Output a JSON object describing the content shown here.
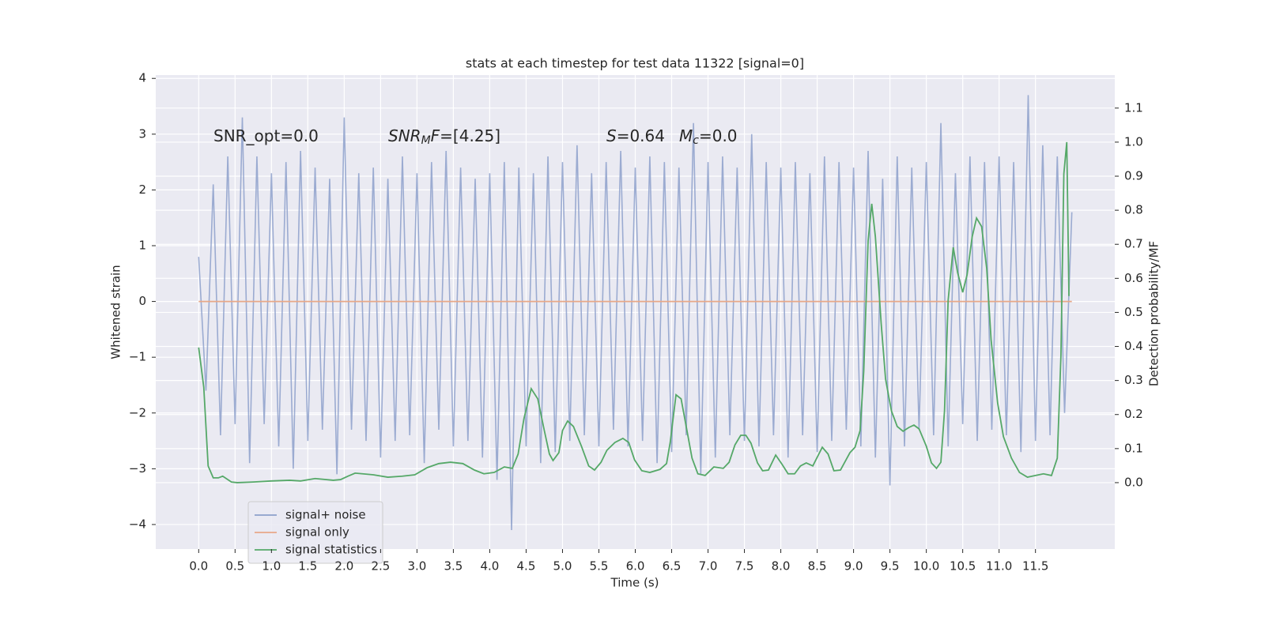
{
  "chart_data": {
    "type": "line",
    "title": "stats at each timestep for test data 11322 [signal=0]",
    "xlabel": "Time (s)",
    "ylabel": "Whitened strain",
    "y2label": "Detection probability/MF",
    "annotations": [
      [
        "SNR_opt=0.0"
      ],
      [
        "SNR",
        "M",
        "F",
        "=[4.25]"
      ],
      [
        "S",
        "=0.64"
      ],
      [
        "M",
        "c",
        "=0.0"
      ]
    ],
    "xlim": [
      -0.59,
      12.59
    ],
    "ylim": [
      -4.44,
      4.06
    ],
    "y2lim": [
      -0.195,
      1.197
    ],
    "xticks": [
      {
        "value": 0,
        "label": "0.0"
      },
      0.5,
      {
        "value": 1,
        "label": "1.0"
      },
      1.5,
      {
        "value": 2,
        "label": "2.0"
      },
      2.5,
      {
        "value": 3,
        "label": "3.0"
      },
      3.5,
      {
        "value": 4,
        "label": "4.0"
      },
      4.5,
      {
        "value": 5,
        "label": "5.0"
      },
      5.5,
      {
        "value": 6,
        "label": "6.0"
      },
      6.5,
      {
        "value": 7,
        "label": "7.0"
      },
      7.5,
      {
        "value": 8,
        "label": "8.0"
      },
      8.5,
      {
        "value": 9,
        "label": "9.0"
      },
      9.5,
      {
        "value": 10,
        "label": "10.0"
      },
      10.5,
      {
        "value": 11,
        "label": "11.0"
      },
      11.5
    ],
    "yticks": [
      {
        "value": -4,
        "label": "−4"
      },
      {
        "value": -3,
        "label": "−3"
      },
      {
        "value": -2,
        "label": "−2"
      },
      {
        "value": -1,
        "label": "−1"
      },
      0,
      1,
      2,
      3,
      4
    ],
    "y2ticks": [
      {
        "value": 0,
        "label": "0.0"
      },
      0.1,
      0.2,
      0.3,
      0.4,
      0.5,
      0.6,
      0.7,
      0.8,
      0.9,
      {
        "value": 1,
        "label": "1.0"
      },
      1.1
    ],
    "grid": true,
    "legend": "lower left",
    "series": [
      {
        "name": "signal+ noise",
        "color": "#8da0cb",
        "x": [
          0,
          0.1,
          0.2,
          0.3,
          0.4,
          0.5,
          0.6,
          0.7,
          0.8,
          0.9,
          1,
          1.1,
          1.2,
          1.3,
          1.4,
          1.5,
          1.6,
          1.7,
          1.8,
          1.9,
          2,
          2.1,
          2.2,
          2.3,
          2.4,
          2.5,
          2.6,
          2.7,
          2.8,
          2.9,
          3,
          3.1,
          3.2,
          3.3,
          3.4,
          3.5,
          3.6,
          3.7,
          3.8,
          3.9,
          4,
          4.1,
          4.2,
          4.3,
          4.4,
          4.5,
          4.6,
          4.7,
          4.8,
          4.9,
          5,
          5.1,
          5.2,
          5.3,
          5.4,
          5.5,
          5.6,
          5.7,
          5.8,
          5.9,
          6,
          6.1,
          6.2,
          6.3,
          6.4,
          6.5,
          6.6,
          6.7,
          6.8,
          6.9,
          7,
          7.1,
          7.2,
          7.3,
          7.4,
          7.5,
          7.6,
          7.7,
          7.8,
          7.9,
          8,
          8.1,
          8.2,
          8.3,
          8.4,
          8.5,
          8.6,
          8.7,
          8.8,
          8.9,
          9,
          9.1,
          9.2,
          9.3,
          9.4,
          9.5,
          9.6,
          9.7,
          9.8,
          9.9,
          10,
          10.1,
          10.2,
          10.3,
          10.4,
          10.5,
          10.6,
          10.7,
          10.8,
          10.9,
          11,
          11.1,
          11.2,
          11.3,
          11.4,
          11.5,
          11.6,
          11.7,
          11.8,
          11.9,
          12
        ],
        "values": [
          0.8,
          -1.6,
          2.1,
          -2.4,
          2.6,
          -2.2,
          3.3,
          -2.9,
          2.6,
          -2.2,
          2.3,
          -2.6,
          2.5,
          -3.0,
          2.7,
          -2.5,
          2.4,
          -2.3,
          2.2,
          -3.1,
          3.3,
          -2.3,
          2.3,
          -2.5,
          2.4,
          -2.8,
          2.2,
          -2.5,
          2.6,
          -2.4,
          2.3,
          -2.9,
          2.5,
          -2.3,
          2.7,
          -2.6,
          2.4,
          -2.5,
          2.2,
          -2.8,
          2.3,
          -3.2,
          2.5,
          -4.1,
          2.4,
          -2.6,
          2.3,
          -2.9,
          2.6,
          -2.7,
          2.5,
          -2.5,
          2.8,
          -2.4,
          2.3,
          -2.6,
          2.5,
          -2.3,
          2.7,
          -2.6,
          2.4,
          -2.5,
          2.6,
          -2.9,
          2.5,
          -2.7,
          2.4,
          -2.4,
          3.2,
          -3.1,
          2.5,
          -2.8,
          2.6,
          -2.4,
          2.4,
          -2.5,
          3.0,
          -2.6,
          2.5,
          -2.4,
          2.4,
          -2.8,
          2.5,
          -2.4,
          2.3,
          -2.7,
          2.6,
          -2.5,
          2.5,
          -2.3,
          2.4,
          -2.6,
          2.7,
          -2.8,
          2.2,
          -3.3,
          2.6,
          -2.6,
          2.4,
          -2.3,
          2.5,
          -2.4,
          3.2,
          -2.6,
          2.3,
          -2.2,
          2.6,
          -2.5,
          2.5,
          -2.3,
          2.6,
          -2.4,
          2.5,
          -2.7,
          3.7,
          -2.5,
          2.8,
          -2.4,
          2.6,
          -2.0,
          1.6
        ]
      },
      {
        "name": "signal only",
        "color": "#e8a888",
        "x": [
          0,
          12
        ],
        "values": [
          0,
          0
        ]
      },
      {
        "name": "signal statistics",
        "color": "#55a868",
        "axis": "y2",
        "x": [
          0,
          0.07,
          0.13,
          0.2,
          0.27,
          0.33,
          0.45,
          0.53,
          0.75,
          1.0,
          1.25,
          1.4,
          1.6,
          1.85,
          1.95,
          2.05,
          2.15,
          2.4,
          2.6,
          2.8,
          2.97,
          3.14,
          3.3,
          3.46,
          3.63,
          3.79,
          3.92,
          4.06,
          4.2,
          4.31,
          4.39,
          4.47,
          4.57,
          4.66,
          4.75,
          4.82,
          4.87,
          4.95,
          5.0,
          5.07,
          5.15,
          5.26,
          5.36,
          5.44,
          5.53,
          5.61,
          5.72,
          5.83,
          5.91,
          5.99,
          6.09,
          6.2,
          6.34,
          6.43,
          6.48,
          6.56,
          6.63,
          6.7,
          6.78,
          6.86,
          6.96,
          7.08,
          7.21,
          7.29,
          7.37,
          7.45,
          7.52,
          7.59,
          7.68,
          7.75,
          7.83,
          7.93,
          8.02,
          8.1,
          8.19,
          8.27,
          8.35,
          8.44,
          8.57,
          8.65,
          8.73,
          8.82,
          8.95,
          9.02,
          9.09,
          9.14,
          9.2,
          9.25,
          9.3,
          9.38,
          9.44,
          9.52,
          9.6,
          9.68,
          9.76,
          9.83,
          9.9,
          10.0,
          10.07,
          10.14,
          10.2,
          10.25,
          10.3,
          10.37,
          10.43,
          10.5,
          10.56,
          10.63,
          10.69,
          10.76,
          10.83,
          10.89,
          10.98,
          11.06,
          11.17,
          11.28,
          11.39,
          11.5,
          11.61,
          11.72,
          11.8,
          11.85,
          11.89,
          11.93,
          11.96
        ],
        "values": [
          0.397,
          0.28,
          0.049,
          0.014,
          0.014,
          0.019,
          0.002,
          0.0,
          0.002,
          0.005,
          0.007,
          0.005,
          0.012,
          0.007,
          0.009,
          0.019,
          0.028,
          0.023,
          0.016,
          0.019,
          0.023,
          0.044,
          0.056,
          0.06,
          0.056,
          0.037,
          0.026,
          0.03,
          0.046,
          0.042,
          0.084,
          0.188,
          0.276,
          0.246,
          0.153,
          0.084,
          0.065,
          0.088,
          0.153,
          0.181,
          0.165,
          0.107,
          0.049,
          0.037,
          0.06,
          0.095,
          0.118,
          0.13,
          0.118,
          0.067,
          0.035,
          0.03,
          0.039,
          0.056,
          0.118,
          0.258,
          0.246,
          0.165,
          0.072,
          0.026,
          0.021,
          0.046,
          0.042,
          0.06,
          0.111,
          0.139,
          0.139,
          0.116,
          0.058,
          0.035,
          0.037,
          0.081,
          0.053,
          0.026,
          0.026,
          0.049,
          0.058,
          0.049,
          0.104,
          0.084,
          0.035,
          0.037,
          0.088,
          0.104,
          0.153,
          0.327,
          0.71,
          0.819,
          0.722,
          0.466,
          0.304,
          0.211,
          0.165,
          0.151,
          0.162,
          0.169,
          0.158,
          0.107,
          0.058,
          0.042,
          0.06,
          0.211,
          0.536,
          0.691,
          0.617,
          0.559,
          0.61,
          0.722,
          0.777,
          0.752,
          0.629,
          0.42,
          0.234,
          0.135,
          0.072,
          0.03,
          0.016,
          0.021,
          0.026,
          0.021,
          0.072,
          0.374,
          0.907,
          1.0,
          0.548
        ]
      }
    ]
  }
}
